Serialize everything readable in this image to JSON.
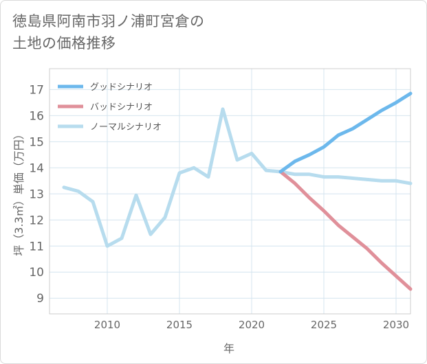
{
  "chart_data": {
    "type": "line",
    "title": "徳島県阿南市羽ノ浦町宮倉の\n土地の価格推移",
    "xlabel": "年",
    "ylabel": "坪（3.3㎡）単価（万円）",
    "xlim": [
      2006,
      2031
    ],
    "ylim": [
      8.4,
      17.8
    ],
    "xticks": [
      2010,
      2015,
      2020,
      2025,
      2030
    ],
    "yticks": [
      9,
      10,
      11,
      12,
      13,
      14,
      15,
      16,
      17
    ],
    "grid": true,
    "legend_position": "top-left",
    "series": [
      {
        "name": "グッドシナリオ",
        "color": "#6cb8ec",
        "x": [
          2022,
          2023,
          2024,
          2025,
          2026,
          2027,
          2028,
          2029,
          2030,
          2031
        ],
        "values": [
          13.85,
          14.25,
          14.5,
          14.8,
          15.25,
          15.5,
          15.85,
          16.2,
          16.5,
          16.85
        ]
      },
      {
        "name": "バッドシナリオ",
        "color": "#e0909a",
        "x": [
          2022,
          2023,
          2024,
          2025,
          2026,
          2027,
          2028,
          2029,
          2030,
          2031
        ],
        "values": [
          13.85,
          13.4,
          12.85,
          12.35,
          11.8,
          11.35,
          10.9,
          10.35,
          9.85,
          9.35
        ]
      },
      {
        "name": "ノーマルシナリオ",
        "color": "#b7dcee",
        "x": [
          2007,
          2008,
          2009,
          2010,
          2011,
          2012,
          2013,
          2014,
          2015,
          2016,
          2017,
          2018,
          2019,
          2020,
          2021,
          2022,
          2023,
          2024,
          2025,
          2026,
          2027,
          2028,
          2029,
          2030,
          2031
        ],
        "values": [
          13.25,
          13.1,
          12.7,
          11.0,
          11.3,
          12.95,
          11.45,
          12.1,
          13.8,
          14.0,
          13.65,
          16.25,
          14.3,
          14.55,
          13.9,
          13.85,
          13.75,
          13.75,
          13.65,
          13.65,
          13.6,
          13.55,
          13.5,
          13.5,
          13.4
        ]
      }
    ]
  }
}
